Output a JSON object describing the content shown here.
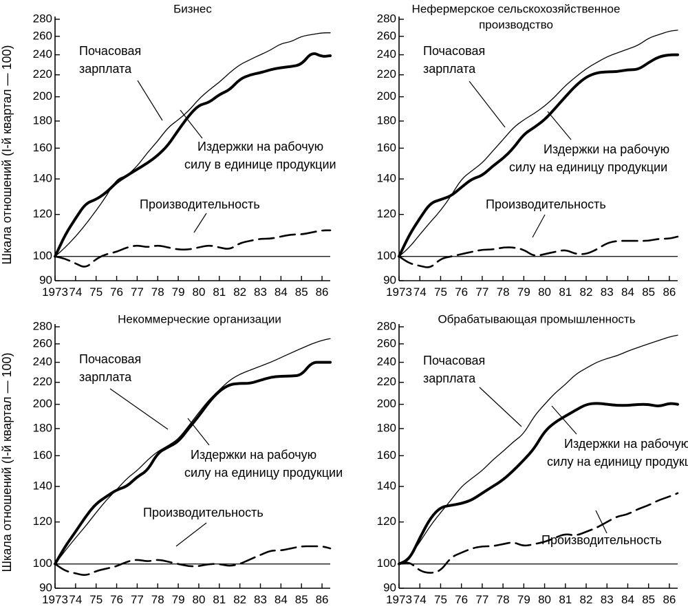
{
  "ylabel": "Шкала отношений (I-й квартал — 100)",
  "charts": [
    {
      "type": "line",
      "title": [
        "Бизнес"
      ],
      "x_labels": [
        "1973",
        "74",
        "75",
        "76",
        "77",
        "78",
        "79",
        "80",
        "81",
        "82",
        "83",
        "84",
        "85",
        "86"
      ],
      "y_ticks": [
        90,
        100,
        120,
        140,
        160,
        180,
        200,
        220,
        240,
        260,
        280
      ],
      "ylim": [
        90,
        280
      ],
      "log_scale": true,
      "annotations": {
        "wage": [
          "Почасовая",
          "зарплата"
        ],
        "ulc": [
          "Издержки на рабочую",
          "силу в единице продукции"
        ],
        "prod": [
          "Производительность"
        ]
      },
      "series": [
        {
          "key": "wage",
          "style": "thin",
          "x": [
            1973,
            1973.5,
            1974,
            1974.5,
            1975,
            1975.5,
            1976,
            1976.5,
            1977,
            1977.5,
            1978,
            1978.5,
            1979,
            1979.5,
            1980,
            1980.5,
            1981,
            1981.5,
            1982,
            1982.5,
            1983,
            1983.5,
            1984,
            1984.5,
            1985,
            1985.5,
            1986,
            1986.4
          ],
          "y": [
            100,
            104,
            109,
            115,
            122,
            130,
            140,
            142,
            148,
            157,
            165,
            175,
            181,
            188,
            198,
            206,
            213,
            222,
            230,
            235,
            240,
            245,
            252,
            254,
            260,
            262,
            264,
            264
          ]
        },
        {
          "key": "ulc",
          "style": "thick",
          "x": [
            1973,
            1973.5,
            1974,
            1974.5,
            1975,
            1975.5,
            1976,
            1976.5,
            1977,
            1977.5,
            1978,
            1978.5,
            1979,
            1979.5,
            1980,
            1980.5,
            1981,
            1981.5,
            1982,
            1982.5,
            1983,
            1983.5,
            1984,
            1984.5,
            1985,
            1985.5,
            1986,
            1986.4
          ],
          "y": [
            100,
            110,
            118,
            126,
            128,
            132,
            138,
            142,
            146,
            150,
            155,
            162,
            173,
            184,
            193,
            195,
            202,
            206,
            216,
            220,
            222,
            225,
            227,
            228,
            230,
            243,
            238,
            239
          ]
        },
        {
          "key": "prod",
          "style": "dashed",
          "x": [
            1973,
            1973.5,
            1974,
            1974.5,
            1975,
            1975.5,
            1976,
            1976.5,
            1977,
            1977.5,
            1978,
            1978.5,
            1979,
            1979.5,
            1980,
            1980.5,
            1981,
            1981.5,
            1982,
            1982.5,
            1983,
            1983.5,
            1984,
            1984.5,
            1985,
            1985.5,
            1986,
            1986.4
          ],
          "y": [
            100,
            99,
            97,
            95,
            99,
            101,
            102,
            104,
            105,
            104,
            105,
            104,
            103,
            103,
            104,
            105,
            104,
            103,
            106,
            107,
            108,
            108,
            109,
            110,
            110,
            111,
            112,
            112
          ]
        }
      ]
    },
    {
      "type": "line",
      "title": [
        "Нефермерское сельскохозяйственное",
        "производство"
      ],
      "x_labels": [
        "1973",
        "74",
        "75",
        "76",
        "77",
        "78",
        "79",
        "80",
        "81",
        "82",
        "83",
        "84",
        "85",
        "86"
      ],
      "y_ticks": [
        90,
        100,
        120,
        140,
        160,
        180,
        200,
        220,
        240,
        260,
        280
      ],
      "ylim": [
        90,
        280
      ],
      "log_scale": true,
      "annotations": {
        "wage": [
          "Почасовая",
          "зарплата"
        ],
        "ulc": [
          "Издержки на рабочую",
          "силу на единицу продукции"
        ],
        "prod": [
          "Производительность"
        ]
      },
      "series": [
        {
          "key": "wage",
          "style": "thin",
          "x": [
            1973,
            1973.5,
            1974,
            1974.5,
            1975,
            1975.5,
            1976,
            1976.5,
            1977,
            1977.5,
            1978,
            1978.5,
            1979,
            1979.5,
            1980,
            1980.5,
            1981,
            1981.5,
            1982,
            1982.5,
            1983,
            1983.5,
            1984,
            1984.5,
            1985,
            1985.5,
            1986,
            1986.4
          ],
          "y": [
            100,
            104,
            110,
            116,
            122,
            130,
            140,
            145,
            150,
            158,
            166,
            175,
            181,
            186,
            192,
            200,
            210,
            218,
            226,
            232,
            238,
            242,
            246,
            250,
            258,
            262,
            266,
            267
          ]
        },
        {
          "key": "ulc",
          "style": "thick",
          "x": [
            1973,
            1973.5,
            1974,
            1974.5,
            1975,
            1975.5,
            1976,
            1976.5,
            1977,
            1977.5,
            1978,
            1978.5,
            1979,
            1979.5,
            1980,
            1980.5,
            1981,
            1981.5,
            1982,
            1982.5,
            1983,
            1983.5,
            1984,
            1984.5,
            1985,
            1985.5,
            1986,
            1986.4
          ],
          "y": [
            100,
            110,
            118,
            126,
            128,
            130,
            135,
            140,
            142,
            148,
            153,
            160,
            170,
            175,
            181,
            190,
            200,
            210,
            218,
            222,
            223,
            223,
            225,
            225,
            232,
            238,
            240,
            240
          ]
        },
        {
          "key": "prod",
          "style": "dashed",
          "x": [
            1973,
            1973.5,
            1974,
            1974.5,
            1975,
            1975.5,
            1976,
            1976.5,
            1977,
            1977.5,
            1978,
            1978.5,
            1979,
            1979.5,
            1980,
            1980.5,
            1981,
            1981.5,
            1982,
            1982.5,
            1983,
            1983.5,
            1984,
            1984.5,
            1985,
            1985.5,
            1986,
            1986.4
          ],
          "y": [
            100,
            97,
            96,
            95,
            99,
            100,
            101,
            102,
            103,
            103,
            104,
            104,
            103,
            100,
            101,
            102,
            103,
            101,
            101,
            103,
            106,
            107,
            107,
            107,
            107,
            108,
            108,
            109
          ]
        }
      ]
    },
    {
      "type": "line",
      "title": [
        "Некоммерческие организации"
      ],
      "x_labels": [
        "1973",
        "74",
        "75",
        "76",
        "77",
        "78",
        "79",
        "80",
        "81",
        "82",
        "83",
        "84",
        "85",
        "86"
      ],
      "y_ticks": [
        90,
        100,
        120,
        140,
        160,
        180,
        200,
        220,
        240,
        260,
        280
      ],
      "ylim": [
        90,
        280
      ],
      "log_scale": true,
      "annotations": {
        "wage": [
          "Почасовая",
          "зарплата"
        ],
        "ulc": [
          "Издержки на рабочую",
          "силу на единицу продукции"
        ],
        "prod": [
          "Производительность"
        ]
      },
      "series": [
        {
          "key": "wage",
          "style": "thin",
          "x": [
            1973,
            1973.5,
            1974,
            1974.5,
            1975,
            1975.5,
            1976,
            1976.5,
            1977,
            1977.5,
            1978,
            1978.5,
            1979,
            1979.5,
            1980,
            1980.5,
            1981,
            1981.5,
            1982,
            1982.5,
            1983,
            1983.5,
            1984,
            1984.5,
            1985,
            1985.5,
            1986,
            1986.4
          ],
          "y": [
            100,
            106,
            112,
            118,
            125,
            132,
            138,
            145,
            150,
            157,
            163,
            167,
            172,
            182,
            193,
            204,
            213,
            222,
            228,
            232,
            236,
            240,
            245,
            250,
            255,
            260,
            264,
            266
          ]
        },
        {
          "key": "ulc",
          "style": "thick",
          "x": [
            1973,
            1973.5,
            1974,
            1974.5,
            1975,
            1975.5,
            1976,
            1976.5,
            1977,
            1977.5,
            1978,
            1978.5,
            1979,
            1979.5,
            1980,
            1980.5,
            1981,
            1981.5,
            1982,
            1982.5,
            1983,
            1983.5,
            1984,
            1984.5,
            1985,
            1985.5,
            1986,
            1986.4
          ],
          "y": [
            100,
            108,
            115,
            123,
            130,
            134,
            138,
            140,
            146,
            150,
            162,
            166,
            170,
            180,
            190,
            202,
            212,
            218,
            219,
            219,
            222,
            225,
            226,
            226,
            227,
            240,
            240,
            240
          ]
        },
        {
          "key": "prod",
          "style": "dashed",
          "x": [
            1973,
            1973.5,
            1974,
            1974.5,
            1975,
            1975.5,
            1976,
            1976.5,
            1977,
            1977.5,
            1978,
            1978.5,
            1979,
            1979.5,
            1980,
            1980.5,
            1981,
            1981.5,
            1982,
            1982.5,
            1983,
            1983.5,
            1984,
            1984.5,
            1985,
            1985.5,
            1986,
            1986.4
          ],
          "y": [
            100,
            97,
            96,
            95,
            97,
            98,
            99,
            101,
            102,
            101,
            102,
            101,
            100,
            99,
            99,
            100,
            100,
            99,
            100,
            102,
            104,
            106,
            106,
            107,
            108,
            108,
            108,
            107
          ]
        }
      ]
    },
    {
      "type": "line",
      "title": [
        "Обрабатывающая промышленность"
      ],
      "x_labels": [
        "1973",
        "74",
        "75",
        "76",
        "77",
        "78",
        "79",
        "80",
        "81",
        "82",
        "83",
        "84",
        "85",
        "86"
      ],
      "y_ticks": [
        90,
        100,
        120,
        140,
        160,
        180,
        200,
        220,
        240,
        260,
        280
      ],
      "ylim": [
        90,
        280
      ],
      "log_scale": true,
      "annotations": {
        "wage": [
          "Почасовая",
          "зарплата"
        ],
        "ulc": [
          "Издержки на рабочую",
          "силу на единицу продукции"
        ],
        "prod": [
          "Производительность"
        ]
      },
      "series": [
        {
          "key": "wage",
          "style": "thin",
          "x": [
            1973,
            1973.5,
            1974,
            1974.5,
            1975,
            1975.5,
            1976,
            1976.5,
            1977,
            1977.5,
            1978,
            1978.5,
            1979,
            1979.5,
            1980,
            1980.5,
            1981,
            1981.5,
            1982,
            1982.5,
            1983,
            1983.5,
            1984,
            1984.5,
            1985,
            1985.5,
            1986,
            1986.4
          ],
          "y": [
            100,
            103,
            110,
            118,
            125,
            132,
            140,
            145,
            150,
            157,
            163,
            170,
            176,
            190,
            200,
            210,
            218,
            228,
            234,
            240,
            244,
            247,
            252,
            256,
            260,
            264,
            268,
            270
          ]
        },
        {
          "key": "ulc",
          "style": "thick",
          "x": [
            1973,
            1973.5,
            1974,
            1974.5,
            1975,
            1975.5,
            1976,
            1976.5,
            1977,
            1977.5,
            1978,
            1978.5,
            1979,
            1979.5,
            1980,
            1980.5,
            1981,
            1981.5,
            1982,
            1982.5,
            1983,
            1983.5,
            1984,
            1984.5,
            1985,
            1985.5,
            1986,
            1986.4
          ],
          "y": [
            100,
            102,
            112,
            122,
            128,
            129,
            130,
            132,
            136,
            140,
            144,
            150,
            157,
            165,
            178,
            185,
            190,
            195,
            200,
            201,
            200,
            199,
            199,
            200,
            200,
            198,
            201,
            200
          ]
        },
        {
          "key": "prod",
          "style": "dashed",
          "x": [
            1973,
            1973.5,
            1974,
            1974.5,
            1975,
            1975.5,
            1976,
            1976.5,
            1977,
            1977.5,
            1978,
            1978.5,
            1979,
            1979.5,
            1980,
            1980.5,
            1981,
            1981.5,
            1982,
            1982.5,
            1983,
            1983.5,
            1984,
            1984.5,
            1985,
            1985.5,
            1986,
            1986.4
          ],
          "y": [
            100,
            101,
            97,
            96,
            97,
            103,
            105,
            107,
            108,
            108,
            109,
            110,
            108,
            109,
            110,
            112,
            114,
            113,
            115,
            117,
            120,
            123,
            124,
            127,
            129,
            132,
            134,
            136
          ]
        }
      ]
    }
  ]
}
